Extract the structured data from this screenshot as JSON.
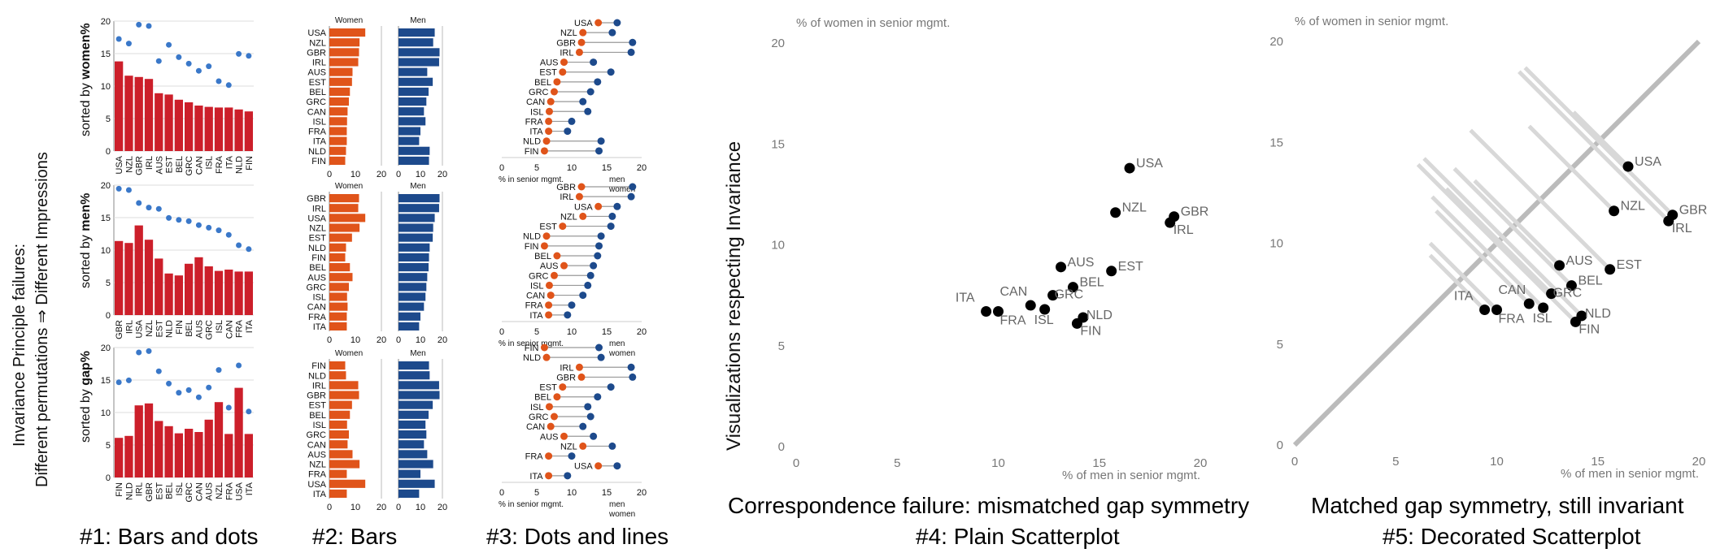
{
  "figure": {
    "side_title_line1": "Invariance Principle failures:",
    "side_title_line2": "Different permutations ⇒ Different Impressions",
    "side_label_scatter": "Visualizations respecting Invariance",
    "row_labels": [
      {
        "prefix": "sorted by ",
        "bold": "women%"
      },
      {
        "prefix": "sorted by ",
        "bold": "men%"
      },
      {
        "prefix": "sorted by ",
        "bold": "gap%"
      }
    ],
    "captions": {
      "c1": "#1: Bars and dots",
      "c2": "#2: Bars",
      "c3": "#3: Dots and lines",
      "c4a": "Correspondence failure: mismatched gap symmetry",
      "c4b": "#4: Plain Scatterplot",
      "c5a": "Matched gap symmetry, still invariant",
      "c5b": "#5: Decorated Scatterplot"
    },
    "bars_headers": {
      "women": "Women",
      "men": "Men"
    },
    "dots_axis_label": "% in senior mgmt.",
    "dots_legend": {
      "men": "men",
      "women": "women"
    },
    "scatter_xlabel": "% of men in senior mgmt.",
    "scatter_ylabel": "% of women in senior mgmt.",
    "colors": {
      "women_bar": "#cc1f2a",
      "women_orange": "#e0541a",
      "men_blue": "#1d4a8c",
      "dot_blue": "#3a78c9",
      "diag": "#bbbbbb"
    }
  },
  "chart_data": [
    {
      "type": "scatter",
      "title": "#4: Plain Scatterplot",
      "xlabel": "% of men in senior mgmt.",
      "ylabel": "% of women in senior mgmt.",
      "xlim": [
        0,
        20
      ],
      "ylim": [
        0,
        20
      ],
      "xticks": [
        0,
        5,
        10,
        15,
        20
      ],
      "yticks": [
        0,
        5,
        10,
        15,
        20
      ],
      "points": [
        {
          "label": "USA",
          "x": 16.5,
          "y": 13.8
        },
        {
          "label": "NZL",
          "x": 15.8,
          "y": 11.6
        },
        {
          "label": "GBR",
          "x": 18.7,
          "y": 11.4
        },
        {
          "label": "IRL",
          "x": 18.5,
          "y": 11.1
        },
        {
          "label": "AUS",
          "x": 13.1,
          "y": 8.9
        },
        {
          "label": "EST",
          "x": 15.6,
          "y": 8.7
        },
        {
          "label": "BEL",
          "x": 13.7,
          "y": 7.9
        },
        {
          "label": "GRC",
          "x": 12.7,
          "y": 7.5
        },
        {
          "label": "CAN",
          "x": 11.6,
          "y": 7.0
        },
        {
          "label": "ISL",
          "x": 12.3,
          "y": 6.8
        },
        {
          "label": "NLD",
          "x": 14.2,
          "y": 6.4
        },
        {
          "label": "ITA",
          "x": 9.4,
          "y": 6.7
        },
        {
          "label": "FRA",
          "x": 10.0,
          "y": 6.7
        },
        {
          "label": "FIN",
          "x": 13.9,
          "y": 6.1
        }
      ]
    },
    {
      "type": "scatter",
      "title": "#5: Decorated Scatterplot",
      "xlabel": "% of men in senior mgmt.",
      "ylabel": "% of women in senior mgmt.",
      "xlim": [
        0,
        20
      ],
      "ylim": [
        0,
        20
      ],
      "xticks": [
        0,
        5,
        10,
        15,
        20
      ],
      "yticks": [
        0,
        5,
        10,
        15,
        20
      ],
      "diagonal": true,
      "points": [
        {
          "label": "USA",
          "x": 16.5,
          "y": 13.8
        },
        {
          "label": "NZL",
          "x": 15.8,
          "y": 11.6
        },
        {
          "label": "GBR",
          "x": 18.7,
          "y": 11.4
        },
        {
          "label": "IRL",
          "x": 18.5,
          "y": 11.1
        },
        {
          "label": "AUS",
          "x": 13.1,
          "y": 8.9
        },
        {
          "label": "EST",
          "x": 15.6,
          "y": 8.7
        },
        {
          "label": "BEL",
          "x": 13.7,
          "y": 7.9
        },
        {
          "label": "GRC",
          "x": 12.7,
          "y": 7.5
        },
        {
          "label": "CAN",
          "x": 11.6,
          "y": 7.0
        },
        {
          "label": "ISL",
          "x": 12.3,
          "y": 6.8
        },
        {
          "label": "NLD",
          "x": 14.2,
          "y": 6.4
        },
        {
          "label": "ITA",
          "x": 9.4,
          "y": 6.7
        },
        {
          "label": "FRA",
          "x": 10.0,
          "y": 6.7
        },
        {
          "label": "FIN",
          "x": 13.9,
          "y": 6.1
        }
      ]
    },
    {
      "type": "bar",
      "title": "#1: Bars and dots",
      "ylim": [
        0,
        20
      ],
      "yticks": [
        0,
        5,
        10,
        15,
        20
      ],
      "panels": [
        {
          "sort": "women%",
          "categories": [
            "USA",
            "NZL",
            "GBR",
            "IRL",
            "AUS",
            "EST",
            "BEL",
            "GRC",
            "CAN",
            "ISL",
            "FRA",
            "ITA",
            "NLD",
            "FIN"
          ]
        },
        {
          "sort": "men%",
          "categories": [
            "GBR",
            "IRL",
            "USA",
            "NZL",
            "EST",
            "NLD",
            "FIN",
            "BEL",
            "AUS",
            "GRC",
            "ISL",
            "CAN",
            "FRA",
            "ITA"
          ]
        },
        {
          "sort": "gap%",
          "categories": [
            "FIN",
            "NLD",
            "IRL",
            "GBR",
            "EST",
            "BEL",
            "ISL",
            "GRC",
            "CAN",
            "AUS",
            "NZL",
            "FRA",
            "USA",
            "ITA"
          ]
        }
      ]
    },
    {
      "type": "bar",
      "title": "#2: Bars",
      "xlim": [
        0,
        20
      ],
      "xticks": [
        0,
        10,
        20
      ],
      "series": [
        {
          "name": "Women"
        },
        {
          "name": "Men"
        }
      ]
    },
    {
      "type": "scatter",
      "title": "#3: Dots and lines",
      "xlim": [
        0,
        20
      ],
      "xticks": [
        0,
        5,
        10,
        15,
        20
      ],
      "series": [
        {
          "name": "men"
        },
        {
          "name": "women"
        }
      ]
    }
  ]
}
